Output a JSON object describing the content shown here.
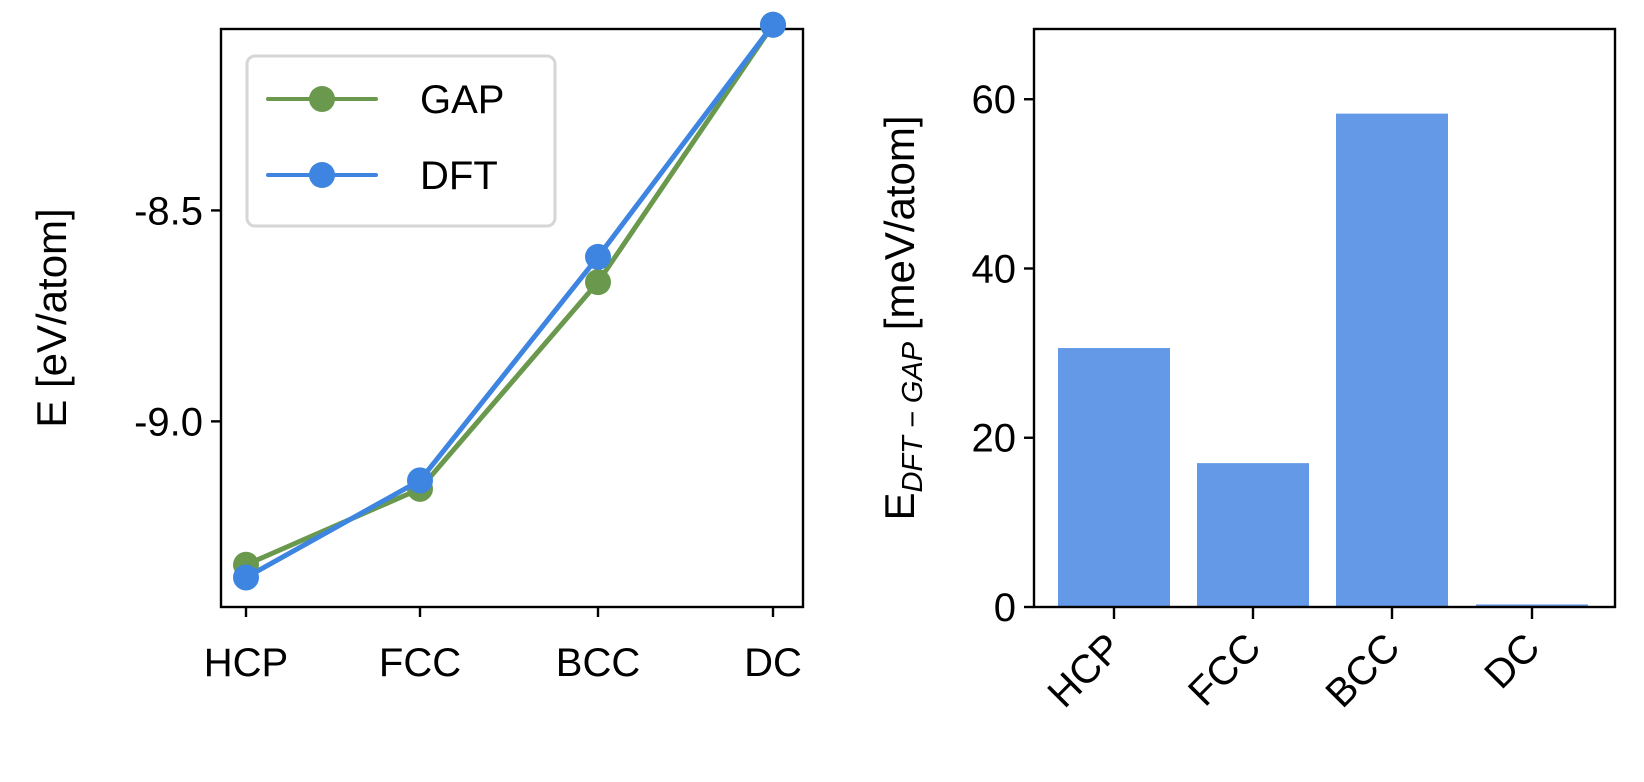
{
  "chart_data": [
    {
      "type": "line",
      "categories": [
        "HCP",
        "FCC",
        "BCC",
        "DC"
      ],
      "series": [
        {
          "name": "GAP",
          "color": "#6a994e",
          "values": [
            -9.34,
            -9.16,
            -8.67,
            -8.06
          ]
        },
        {
          "name": "DFT",
          "color": "#3d85e0",
          "values": [
            -9.37,
            -9.14,
            -8.61,
            -8.06
          ]
        }
      ],
      "ylabel": "E [eV/atom]",
      "ylim": [
        -9.44,
        -8.07
      ],
      "yticks": [
        -9.0,
        -8.5
      ],
      "ytick_labels": [
        "-9.0",
        "-8.5"
      ],
      "legend_position": "upper-left"
    },
    {
      "type": "bar",
      "categories": [
        "HCP",
        "FCC",
        "BCC",
        "DC"
      ],
      "values": [
        30.6,
        17.0,
        58.3,
        0.3
      ],
      "color": "#6399e6",
      "ylabel_main": "E",
      "ylabel_subscript": "DFT − GAP",
      "ylabel_units": " [meV/atom]",
      "ylim": [
        0,
        68.3
      ],
      "yticks": [
        0,
        20,
        40,
        60
      ],
      "ytick_labels": [
        "0",
        "20",
        "40",
        "60"
      ],
      "xtick_rotation": "45-degrees"
    }
  ]
}
